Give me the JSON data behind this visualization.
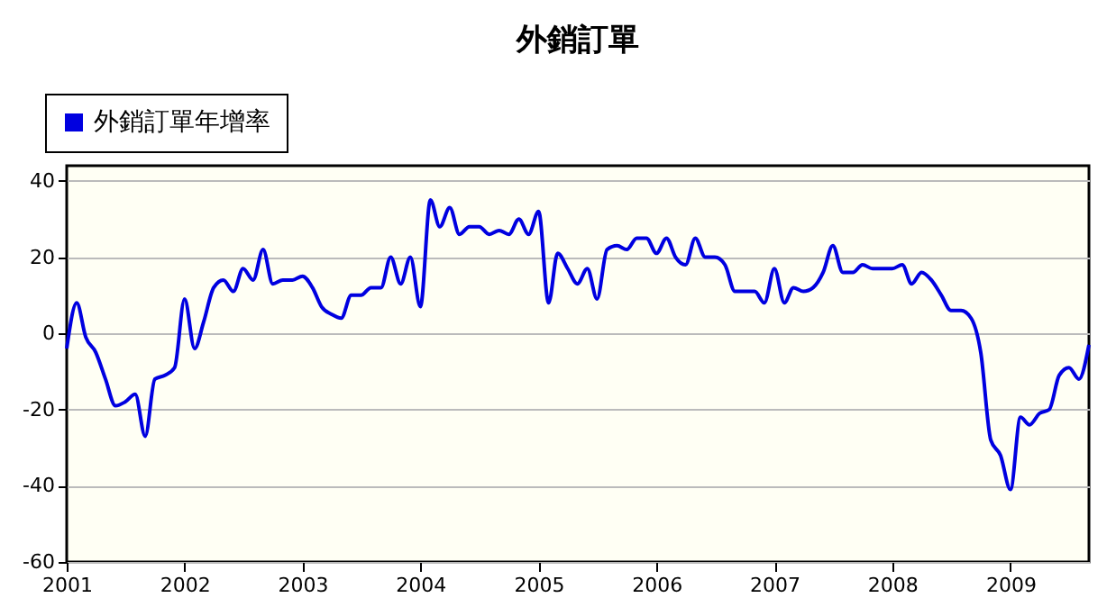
{
  "chart_data": {
    "type": "line",
    "title": "外銷訂單",
    "x": [
      "2001-01",
      "2001-02",
      "2001-03",
      "2001-04",
      "2001-05",
      "2001-06",
      "2001-07",
      "2001-08",
      "2001-09",
      "2001-10",
      "2001-11",
      "2001-12",
      "2002-01",
      "2002-02",
      "2002-03",
      "2002-04",
      "2002-05",
      "2002-06",
      "2002-07",
      "2002-08",
      "2002-09",
      "2002-10",
      "2002-11",
      "2002-12",
      "2003-01",
      "2003-02",
      "2003-03",
      "2003-04",
      "2003-05",
      "2003-06",
      "2003-07",
      "2003-08",
      "2003-09",
      "2003-10",
      "2003-11",
      "2003-12",
      "2004-01",
      "2004-02",
      "2004-03",
      "2004-04",
      "2004-05",
      "2004-06",
      "2004-07",
      "2004-08",
      "2004-09",
      "2004-10",
      "2004-11",
      "2004-12",
      "2005-01",
      "2005-02",
      "2005-03",
      "2005-04",
      "2005-05",
      "2005-06",
      "2005-07",
      "2005-08",
      "2005-09",
      "2005-10",
      "2005-11",
      "2005-12",
      "2006-01",
      "2006-02",
      "2006-03",
      "2006-04",
      "2006-05",
      "2006-06",
      "2006-07",
      "2006-08",
      "2006-09",
      "2006-10",
      "2006-11",
      "2006-12",
      "2007-01",
      "2007-02",
      "2007-03",
      "2007-04",
      "2007-05",
      "2007-06",
      "2007-07",
      "2007-08",
      "2007-09",
      "2007-10",
      "2007-11",
      "2007-12",
      "2008-01",
      "2008-02",
      "2008-03",
      "2008-04",
      "2008-05",
      "2008-06",
      "2008-07",
      "2008-08",
      "2008-09",
      "2008-10",
      "2008-11",
      "2008-12",
      "2009-01",
      "2009-02",
      "2009-03",
      "2009-04",
      "2009-05",
      "2009-06",
      "2009-07",
      "2009-08",
      "2009-09"
    ],
    "series": [
      {
        "name": "外銷訂單年增率",
        "color": "#0000e0",
        "values": [
          -4,
          8,
          -1,
          -5,
          -12,
          -19,
          -18,
          -16,
          -27,
          -12,
          -11,
          -9,
          9,
          -4,
          3,
          12,
          14,
          11,
          17,
          14,
          22,
          13,
          14,
          14,
          15,
          12,
          7,
          5,
          4,
          10,
          10,
          12,
          12,
          20,
          13,
          20,
          7,
          35,
          28,
          33,
          26,
          28,
          28,
          26,
          27,
          26,
          30,
          26,
          32,
          8,
          21,
          17,
          13,
          17,
          9,
          22,
          23,
          22,
          25,
          25,
          21,
          25,
          20,
          18,
          25,
          20,
          20,
          18,
          11,
          11,
          11,
          8,
          17,
          8,
          12,
          11,
          12,
          16,
          23,
          16,
          16,
          18,
          17,
          17,
          17,
          18,
          13,
          16,
          14,
          10,
          6,
          6,
          4,
          -5,
          -28,
          -32,
          -41,
          -22,
          -24,
          -21,
          -20,
          -11,
          -9,
          -12,
          -3
        ]
      }
    ],
    "xlim": [
      "2001-01",
      "2009-09"
    ],
    "xticks": [
      "2001",
      "2002",
      "2003",
      "2004",
      "2005",
      "2006",
      "2007",
      "2008",
      "2009"
    ],
    "ylim": [
      -60,
      44
    ],
    "yticks": [
      -60,
      -40,
      -20,
      0,
      20,
      40
    ],
    "grid": "y",
    "legend": "top left",
    "marker": "none",
    "line_style": "solid"
  }
}
